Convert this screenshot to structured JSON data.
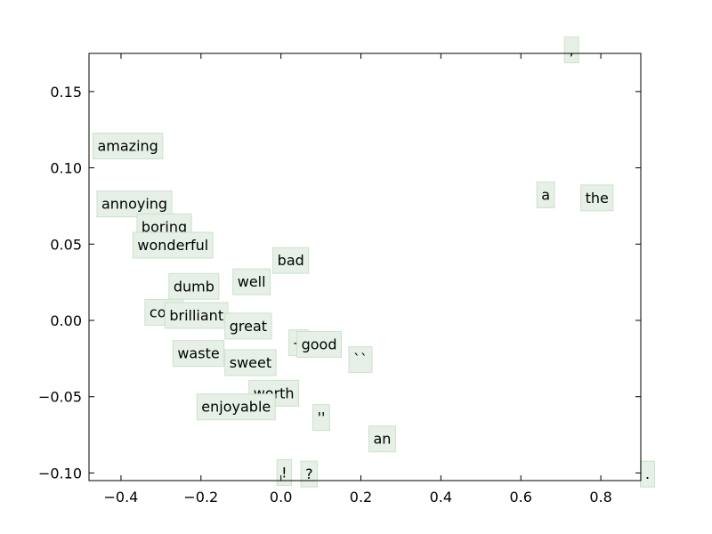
{
  "chart_data": {
    "type": "scatter",
    "title": "",
    "xlabel": "",
    "ylabel": "",
    "xlim": [
      -0.48,
      0.9
    ],
    "ylim": [
      -0.105,
      0.175
    ],
    "x_ticks": [
      -0.4,
      -0.2,
      0.0,
      0.2,
      0.4,
      0.6,
      0.8
    ],
    "x_tick_labels": [
      "−0.4",
      "−0.2",
      "0.0",
      "0.2",
      "0.4",
      "0.6",
      "0.8"
    ],
    "y_ticks": [
      -0.1,
      -0.05,
      0.0,
      0.05,
      0.1,
      0.15
    ],
    "y_tick_labels": [
      "−0.10",
      "−0.05",
      "0.00",
      "0.05",
      "0.10",
      "0.15"
    ],
    "grid": false,
    "points": [
      {
        "label": "amazing",
        "x": -0.47,
        "y": 0.114
      },
      {
        "label": "annoying",
        "x": -0.46,
        "y": 0.076
      },
      {
        "label": "boring",
        "x": -0.36,
        "y": 0.061
      },
      {
        "label": "wonderful",
        "x": -0.37,
        "y": 0.049
      },
      {
        "label": "bad",
        "x": -0.02,
        "y": 0.039
      },
      {
        "label": "well",
        "x": -0.12,
        "y": 0.025
      },
      {
        "label": "dumb",
        "x": -0.28,
        "y": 0.022
      },
      {
        "label": "cool",
        "x": -0.34,
        "y": 0.005
      },
      {
        "label": "brilliant",
        "x": -0.29,
        "y": 0.003
      },
      {
        "label": "great",
        "x": -0.14,
        "y": -0.004
      },
      {
        "label": "--",
        "x": 0.02,
        "y": -0.015
      },
      {
        "label": "good",
        "x": 0.04,
        "y": -0.016
      },
      {
        "label": "waste",
        "x": -0.27,
        "y": -0.022
      },
      {
        "label": "sweet",
        "x": -0.14,
        "y": -0.028
      },
      {
        "label": "``",
        "x": 0.17,
        "y": -0.026
      },
      {
        "label": "worth",
        "x": -0.08,
        "y": -0.048
      },
      {
        "label": "enjoyable",
        "x": -0.21,
        "y": -0.057
      },
      {
        "label": "''",
        "x": 0.08,
        "y": -0.064
      },
      {
        "label": "an",
        "x": 0.22,
        "y": -0.078
      },
      {
        "label": "!",
        "x": -0.01,
        "y": -0.1
      },
      {
        "label": "?",
        "x": 0.05,
        "y": -0.101
      },
      {
        "label": "a",
        "x": 0.64,
        "y": 0.082
      },
      {
        "label": "the",
        "x": 0.75,
        "y": 0.08
      },
      {
        "label": ",",
        "x": 0.71,
        "y": 0.177
      },
      {
        "label": ".",
        "x": 0.9,
        "y": -0.101
      }
    ]
  }
}
